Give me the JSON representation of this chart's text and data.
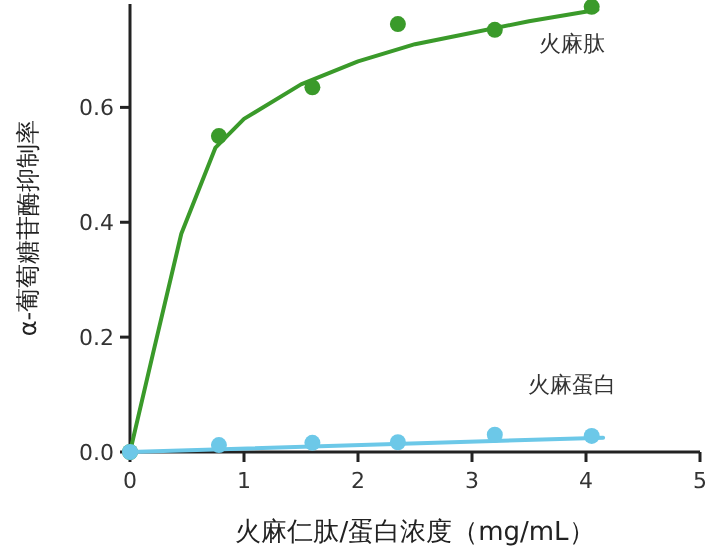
{
  "chart_data": {
    "type": "scatter",
    "xlabel": "火麻仁肽/蛋白浓度（mg/mL）",
    "ylabel": "α-葡萄糖苷酶抑制率",
    "xlim": [
      0,
      5
    ],
    "ylim": [
      0,
      0.78
    ],
    "xticks": [
      0,
      1,
      2,
      3,
      4,
      5
    ],
    "yticks": [
      {
        "value": 0,
        "label": "0.0"
      },
      {
        "value": 0.2,
        "label": "0.2"
      },
      {
        "value": 0.4,
        "label": "0.4"
      },
      {
        "value": 0.6,
        "label": "0.6"
      }
    ],
    "marker": "circle",
    "grid": false,
    "legend": false,
    "series": [
      {
        "type": "line",
        "marker": "none",
        "color": "#3a9a2a",
        "x": [
          0,
          0.2,
          0.45,
          0.75,
          1.0,
          1.5,
          2,
          2.5,
          3,
          3.5,
          4.1
        ],
        "values": [
          0,
          0.17,
          0.38,
          0.53,
          0.58,
          0.64,
          0.68,
          0.71,
          0.73,
          0.75,
          0.77
        ]
      },
      {
        "name": "火麻肽",
        "color": "#3a9a2a",
        "x": [
          0,
          0.78,
          1.6,
          2.35,
          3.2,
          4.05
        ],
        "values": [
          0,
          0.55,
          0.635,
          0.745,
          0.735,
          0.775
        ]
      },
      {
        "type": "line",
        "marker": "none",
        "color": "#6cc8e8",
        "x": [
          0,
          4.15
        ],
        "values": [
          0,
          0.025
        ]
      },
      {
        "name": "火麻蛋白",
        "color": "#6cc8e8",
        "x": [
          0,
          0.78,
          1.6,
          2.35,
          3.2,
          4.05
        ],
        "values": [
          0,
          0.012,
          0.016,
          0.017,
          0.03,
          0.028
        ]
      }
    ]
  }
}
